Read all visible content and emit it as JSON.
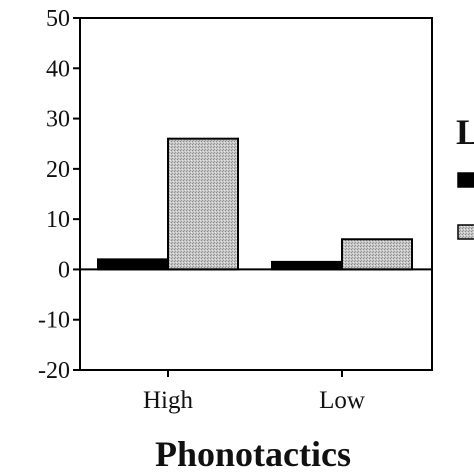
{
  "chart_data": {
    "type": "bar",
    "categories": [
      "High",
      "Low"
    ],
    "series": [
      {
        "values": [
          2,
          1.5
        ],
        "color": "#000000"
      },
      {
        "values": [
          26,
          6
        ],
        "color": "#bdbdbd"
      }
    ],
    "xlabel": "Phonotactics",
    "ylabel": "",
    "ylim": [
      -20,
      50
    ],
    "yticks": [
      "50",
      "40",
      "30",
      "20",
      "10",
      "0",
      "-10",
      "-20"
    ],
    "legend": {
      "title": "L",
      "placement": "right"
    },
    "grid": false
  }
}
